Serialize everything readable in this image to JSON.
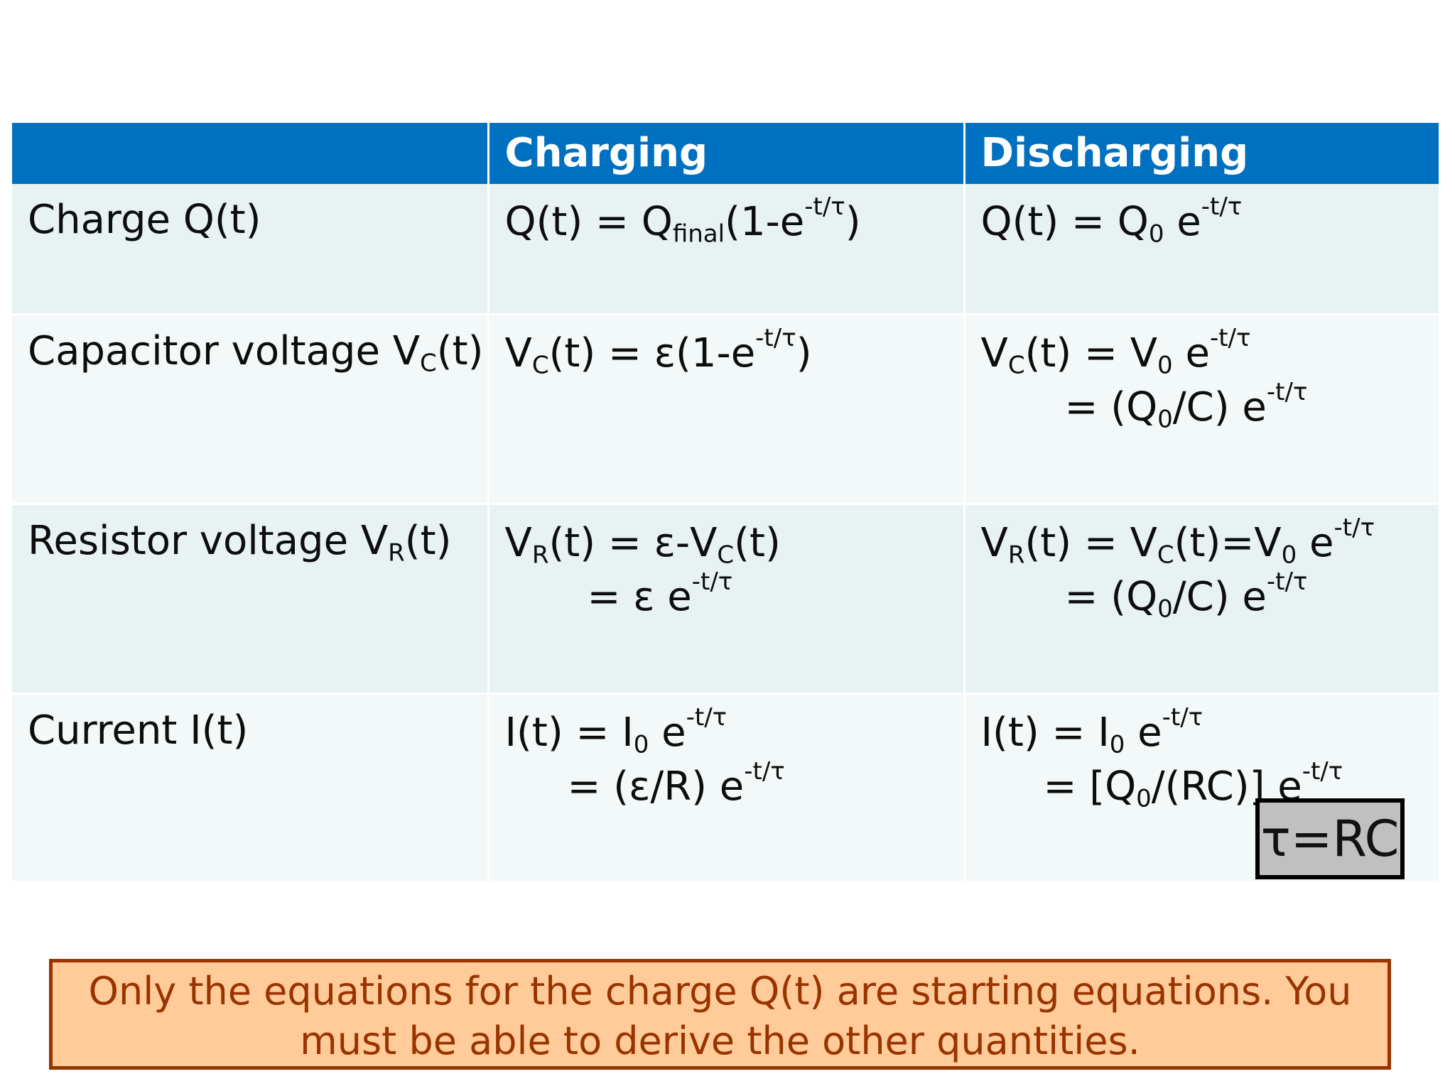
{
  "table": {
    "headers": [
      "",
      "Charging",
      "Discharging"
    ],
    "rows": [
      {
        "label": {
          "main": "Charge Q(t)"
        },
        "charging": [
          {
            "parts": [
              "Q(t) = Q",
              {
                "sub": "final"
              },
              "(1-e",
              {
                "sup": "-t/τ"
              },
              ")"
            ]
          }
        ],
        "discharging": [
          {
            "parts": [
              "Q(t) = Q",
              {
                "sub": "0"
              },
              " e",
              {
                "sup": "-t/τ"
              }
            ]
          }
        ]
      },
      {
        "label": {
          "main": "Capacitor voltage V",
          "sub": "C",
          "after": "(t)"
        },
        "charging": [
          {
            "parts": [
              "V",
              {
                "sub": "C"
              },
              "(t) = ε(1-e",
              {
                "sup": "-t/τ"
              },
              ")"
            ]
          }
        ],
        "discharging": [
          {
            "parts": [
              "V",
              {
                "sub": "C"
              },
              "(t) = V",
              {
                "sub": "0"
              },
              " e",
              {
                "sup": "-t/τ"
              }
            ]
          },
          {
            "parts": [
              "= (Q",
              {
                "sub": "0"
              },
              "/C) e",
              {
                "sup": "-t/τ"
              }
            ]
          }
        ]
      },
      {
        "label": {
          "main": "Resistor voltage V",
          "sub": "R",
          "after": "(t)"
        },
        "charging": [
          {
            "parts": [
              "V",
              {
                "sub": "R"
              },
              "(t) = ε-V",
              {
                "sub": "C"
              },
              "(t)"
            ]
          },
          {
            "parts": [
              "= ε e",
              {
                "sup": "-t/τ"
              }
            ]
          }
        ],
        "discharging": [
          {
            "parts": [
              "V",
              {
                "sub": "R"
              },
              "(t) = V",
              {
                "sub": "C"
              },
              "(t)=V",
              {
                "sub": "0"
              },
              " e",
              {
                "sup": "-t/τ"
              }
            ]
          },
          {
            "parts": [
              "= (Q",
              {
                "sub": "0"
              },
              "/C) e",
              {
                "sup": "-t/τ"
              }
            ]
          }
        ]
      },
      {
        "label": {
          "main": "Current I(t)"
        },
        "charging": [
          {
            "parts": [
              "I(t) = I",
              {
                "sub": "0"
              },
              " e",
              {
                "sup": "-t/τ"
              }
            ]
          },
          {
            "parts": [
              "= (ε/R) e",
              {
                "sup": "-t/τ"
              }
            ]
          }
        ],
        "discharging": [
          {
            "parts": [
              "I(t) = I",
              {
                "sub": "0"
              },
              " e",
              {
                "sup": "-t/τ"
              }
            ]
          },
          {
            "parts": [
              "= [Q",
              {
                "sub": "0"
              },
              "/(RC)]  e",
              {
                "sup": "-t/τ"
              }
            ]
          }
        ]
      }
    ]
  },
  "tau_box": "τ=RC",
  "note": "Only the equations for the charge Q(t) are starting equations. You must be able to derive the other quantities."
}
